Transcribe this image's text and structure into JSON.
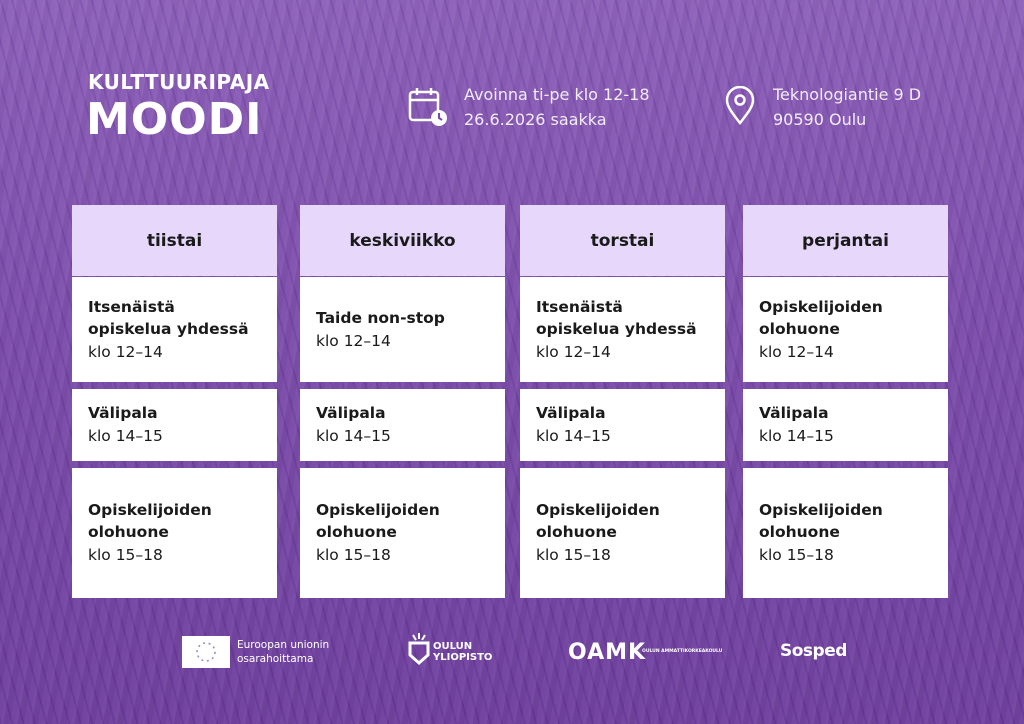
{
  "header": {
    "title_small": "KULTTUURIPAJA",
    "title_large": "MOODI",
    "hours": [
      "Avoinna ti-pe klo 12-18",
      "26.6.2026 saakka"
    ],
    "address": [
      "Teknologiantie 9 D",
      "90590 Oulu"
    ]
  },
  "schedule": [
    {
      "day": "tiistai",
      "slots": [
        {
          "title": "Itsenäistä opiskelua yhdessä",
          "time": "klo 12–14"
        },
        {
          "title": "Välipala",
          "time": "klo 14–15"
        },
        {
          "title": "Opiskelijoiden olohuone",
          "time": "klo 15–18"
        }
      ]
    },
    {
      "day": "keskiviikko",
      "slots": [
        {
          "title": "Taide non-stop",
          "time": "klo 12–14"
        },
        {
          "title": "Välipala",
          "time": "klo 14–15"
        },
        {
          "title": "Opiskelijoiden olohuone",
          "time": "klo 15–18"
        }
      ]
    },
    {
      "day": "torstai",
      "slots": [
        {
          "title": "Itsenäistä opiskelua yhdessä",
          "time": "klo 12–14"
        },
        {
          "title": "Välipala",
          "time": "klo 14–15"
        },
        {
          "title": "Opiskelijoiden olohuone",
          "time": "klo 15–18"
        }
      ]
    },
    {
      "day": "perjantai",
      "slots": [
        {
          "title": "Opiskelijoiden olohuone",
          "time": "klo 12–14"
        },
        {
          "title": "Välipala",
          "time": "klo 14–15"
        },
        {
          "title": "Opiskelijoiden olohuone",
          "time": "klo 15–18"
        }
      ]
    }
  ],
  "footer": {
    "eu": [
      "Euroopan unionin",
      "osarahoittama"
    ],
    "oulu_uni": [
      "OULUN",
      "YLIOPISTO"
    ],
    "oamk": "OAMK",
    "oamk_sub": "OULUN AMMATTIKORKEAKOULU",
    "sosped": "Sosped"
  }
}
